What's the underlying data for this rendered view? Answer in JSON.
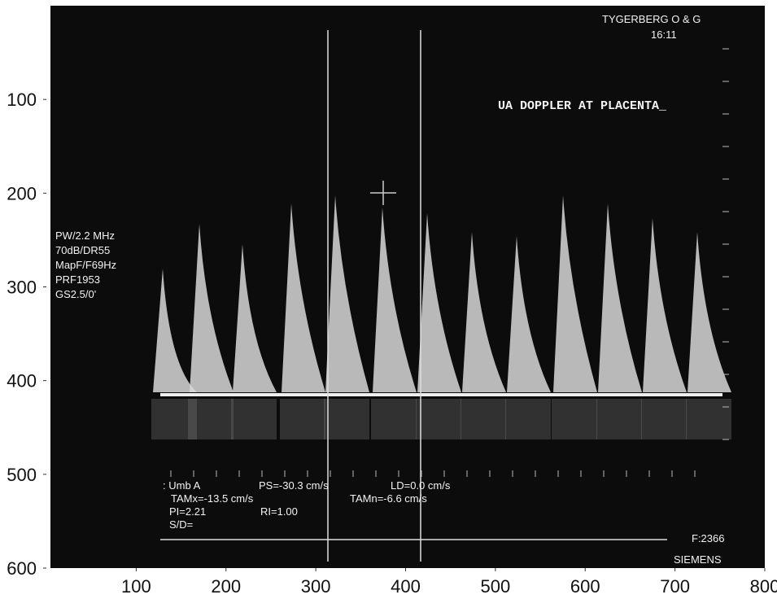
{
  "image_axes": {
    "xlim": [
      0,
      800
    ],
    "ylim": [
      0,
      600
    ],
    "y_inverted": true,
    "xticks": [
      100,
      200,
      300,
      400,
      500,
      600,
      700,
      800
    ],
    "yticks": [
      100,
      200,
      300,
      400,
      500,
      600
    ]
  },
  "overlay": {
    "header": [
      "TYGERBERG O & G",
      "16:11"
    ],
    "title": "UA DOPPLER AT PLACENTA_",
    "settings": [
      "PW/2.2 MHz",
      "70dB/DR55",
      "MapF/F69Hz",
      "PRF1953",
      "GS2.5/0'"
    ],
    "measurements": [
      ": Umb A",
      "PS=-30.3 cm/s",
      "LD=0.0 cm/s",
      "TAMx=-13.5 cm/s",
      "TAMn=-6.6 cm/s",
      "PI=2.21",
      "RI=1.00",
      "S/D="
    ],
    "footer": [
      "F:2366",
      "SIEMENS"
    ]
  }
}
